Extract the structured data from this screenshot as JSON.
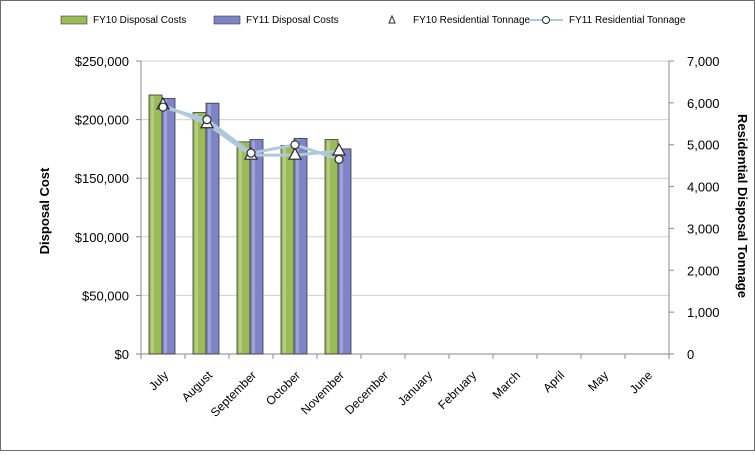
{
  "chart_data": {
    "type": "bar",
    "categories": [
      "July",
      "August",
      "September",
      "October",
      "November",
      "December",
      "January",
      "February",
      "March",
      "April",
      "May",
      "June"
    ],
    "series": [
      {
        "name": "FY10 Disposal Costs",
        "kind": "bar",
        "axis": "left",
        "color": "#9bbb59",
        "values": [
          221000,
          206000,
          181000,
          178000,
          183000,
          null,
          null,
          null,
          null,
          null,
          null,
          null
        ]
      },
      {
        "name": "FY11 Disposal Costs",
        "kind": "bar",
        "axis": "left",
        "color": "#7e84c8",
        "values": [
          218000,
          214000,
          183000,
          184000,
          175000,
          null,
          null,
          null,
          null,
          null,
          null,
          null
        ]
      },
      {
        "name": "FY10 Residential Tonnage",
        "kind": "line",
        "axis": "right",
        "marker": "triangle",
        "color": "#b0c8dc",
        "values": [
          5950,
          5500,
          4750,
          4750,
          4850,
          null,
          null,
          null,
          null,
          null,
          null,
          null
        ]
      },
      {
        "name": "FY11 Residential Tonnage",
        "kind": "line",
        "axis": "right",
        "marker": "circle",
        "color": "#b0c8dc",
        "values": [
          5900,
          5600,
          4800,
          5000,
          4650,
          null,
          null,
          null,
          null,
          null,
          null,
          null
        ]
      }
    ],
    "ylabel": "Disposal Cost",
    "y2label": "Residential Disposal Tonnage",
    "ylim": [
      0,
      250000
    ],
    "y2lim": [
      0,
      7000
    ],
    "yticks": [
      "$0",
      "$50,000",
      "$100,000",
      "$150,000",
      "$200,000",
      "$250,000"
    ],
    "y2ticks": [
      "0",
      "1,000",
      "2,000",
      "3,000",
      "4,000",
      "5,000",
      "6,000",
      "7,000"
    ],
    "grid": true,
    "legend": "top"
  }
}
